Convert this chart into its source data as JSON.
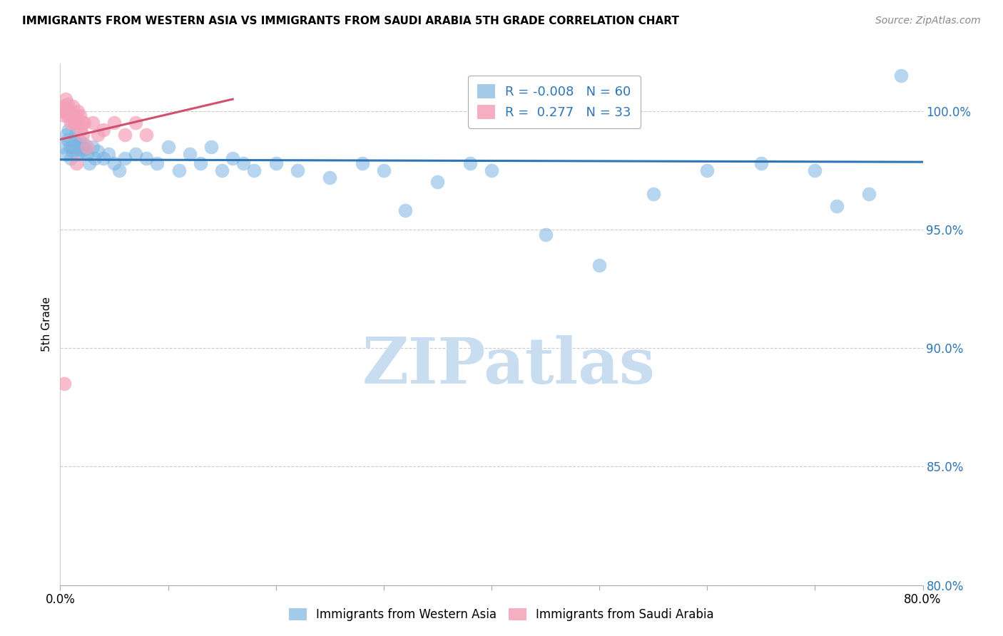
{
  "title": "IMMIGRANTS FROM WESTERN ASIA VS IMMIGRANTS FROM SAUDI ARABIA 5TH GRADE CORRELATION CHART",
  "source": "Source: ZipAtlas.com",
  "ylabel": "5th Grade",
  "xlim": [
    0.0,
    80.0
  ],
  "ylim": [
    80.0,
    102.0
  ],
  "yticks": [
    80.0,
    85.0,
    90.0,
    95.0,
    100.0
  ],
  "xticks": [
    0.0,
    10.0,
    20.0,
    30.0,
    40.0,
    50.0,
    60.0,
    70.0,
    80.0
  ],
  "legend_label1": "Immigrants from Western Asia",
  "legend_label2": "Immigrants from Saudi Arabia",
  "R1": "-0.008",
  "N1": "60",
  "R2": "0.277",
  "N2": "33",
  "blue_color": "#7cb4e0",
  "pink_color": "#f4a0b8",
  "trend_blue": "#2e75b6",
  "trend_pink": "#d05070",
  "watermark": "ZIPatlas",
  "watermark_color": "#c8ddf0",
  "blue_scatter_x": [
    0.3,
    0.5,
    0.6,
    0.7,
    0.8,
    0.9,
    1.0,
    1.1,
    1.2,
    1.3,
    1.4,
    1.5,
    1.6,
    1.7,
    1.8,
    1.9,
    2.0,
    2.1,
    2.2,
    2.3,
    2.5,
    2.7,
    3.0,
    3.2,
    3.5,
    4.0,
    4.5,
    5.0,
    5.5,
    6.0,
    7.0,
    8.0,
    9.0,
    10.0,
    11.0,
    12.0,
    13.0,
    14.0,
    15.0,
    16.0,
    17.0,
    18.0,
    20.0,
    22.0,
    25.0,
    28.0,
    30.0,
    32.0,
    35.0,
    38.0,
    40.0,
    45.0,
    50.0,
    55.0,
    60.0,
    65.0,
    70.0,
    72.0,
    75.0,
    78.0
  ],
  "blue_scatter_y": [
    98.5,
    98.2,
    99.0,
    98.8,
    99.2,
    98.5,
    98.0,
    98.5,
    98.3,
    98.8,
    99.0,
    98.5,
    98.2,
    98.6,
    98.4,
    98.7,
    98.5,
    98.3,
    98.6,
    98.4,
    98.2,
    97.8,
    98.5,
    98.0,
    98.3,
    98.0,
    98.2,
    97.8,
    97.5,
    98.0,
    98.2,
    98.0,
    97.8,
    98.5,
    97.5,
    98.2,
    97.8,
    98.5,
    97.5,
    98.0,
    97.8,
    97.5,
    97.8,
    97.5,
    97.2,
    97.8,
    97.5,
    95.8,
    97.0,
    97.8,
    97.5,
    94.8,
    93.5,
    96.5,
    97.5,
    97.8,
    97.5,
    96.0,
    96.5,
    101.5
  ],
  "pink_scatter_x": [
    0.2,
    0.3,
    0.4,
    0.5,
    0.6,
    0.7,
    0.7,
    0.8,
    0.9,
    1.0,
    1.0,
    1.1,
    1.2,
    1.3,
    1.4,
    1.5,
    1.6,
    1.7,
    1.8,
    1.9,
    2.0,
    2.1,
    2.2,
    2.5,
    3.0,
    3.5,
    4.0,
    5.0,
    6.0,
    7.0,
    8.0,
    1.5,
    0.4
  ],
  "pink_scatter_y": [
    100.0,
    100.2,
    99.8,
    100.5,
    100.0,
    100.3,
    99.8,
    100.0,
    99.8,
    100.0,
    99.5,
    99.8,
    100.2,
    99.5,
    99.8,
    99.5,
    100.0,
    99.5,
    99.8,
    99.2,
    99.5,
    99.0,
    99.5,
    98.5,
    99.5,
    99.0,
    99.2,
    99.5,
    99.0,
    99.5,
    99.0,
    97.8,
    88.5
  ],
  "blue_trendline_x": [
    0.0,
    80.0
  ],
  "blue_trendline_y": [
    97.95,
    97.85
  ],
  "pink_trendline_x": [
    0.0,
    16.0
  ],
  "pink_trendline_y": [
    98.8,
    100.5
  ]
}
